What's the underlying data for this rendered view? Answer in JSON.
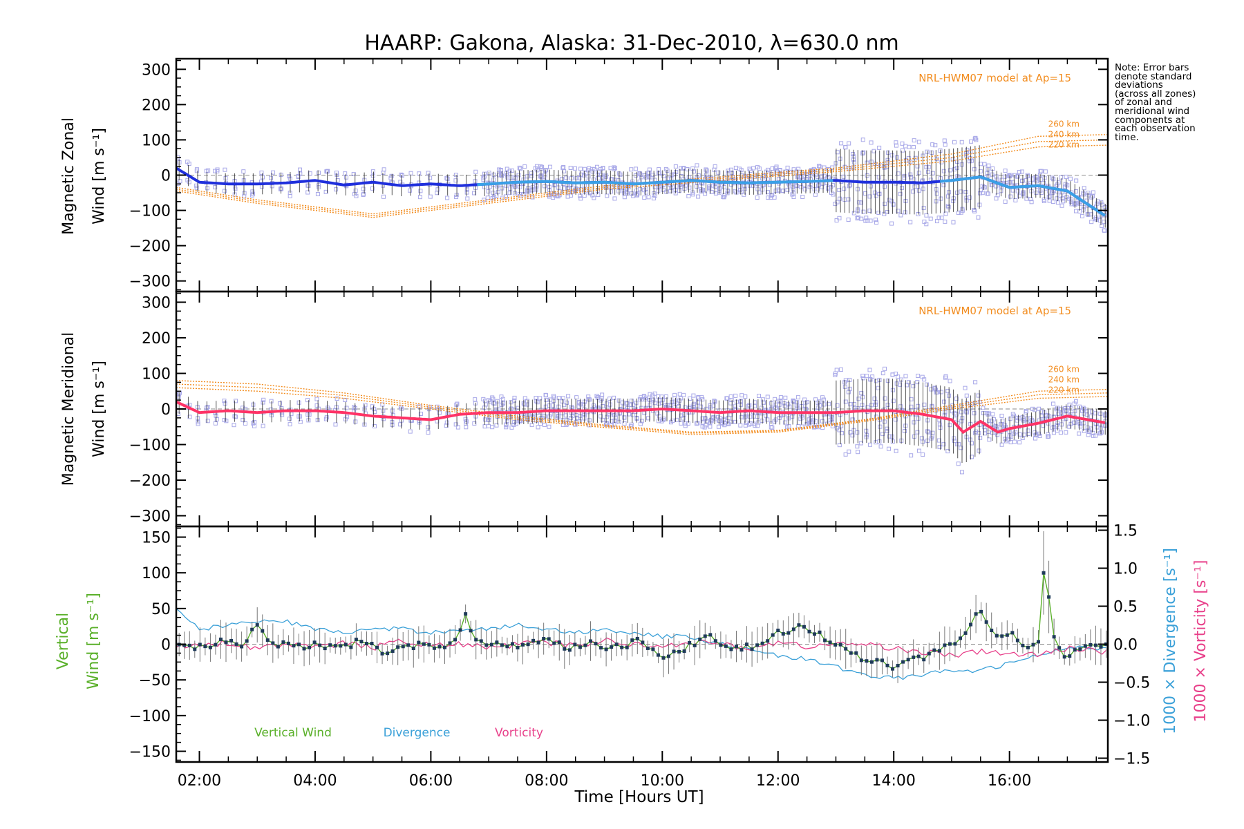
{
  "title": "HAARP: Gakona,  Alaska: 31-Dec-2010, λ=630.0 nm",
  "note": "Note: Error bars\ndenote standard\ndeviations\n(across all zones)\nof zonal and\nmeridional wind\ncomponents at\neach observation\ntime.",
  "colors": {
    "zonal": "#1f2fdc",
    "zonal_light": "#3aa0e6",
    "meridional": "#ff3366",
    "model": "#f28c1e",
    "vertical": "#5ab02a",
    "divergence": "#3aa0d8",
    "vorticity": "#e8408a",
    "scatter": "#a8a8e8",
    "errorbar": "#1a1a1a"
  },
  "chart_data": [
    {
      "type": "scatter",
      "panel": "zonal",
      "ylabel": "Magnetic Zonal",
      "ylabel2": "Wind [m s⁻¹]",
      "ylim": [
        -330,
        330
      ],
      "yticks": [
        300,
        200,
        100,
        0,
        -100,
        -200,
        -300
      ],
      "model_label": "NRL-HWM07 model at Ap=15",
      "model_levels": [
        "260 km",
        "240 km",
        "220 km"
      ],
      "xlim": [
        1.6,
        17.7
      ],
      "series": [
        {
          "role": "mean",
          "x": [
            1.6,
            2.0,
            2.5,
            3.0,
            3.5,
            4.0,
            4.5,
            5.0,
            5.5,
            6.0,
            6.5,
            7.0,
            7.5,
            8.0,
            8.5,
            9.0,
            9.5,
            10.0,
            10.5,
            11.0,
            11.5,
            12.0,
            12.5,
            13.0,
            13.5,
            14.0,
            14.5,
            15.0,
            15.5,
            16.0,
            16.5,
            17.0,
            17.7
          ],
          "values": [
            20,
            -20,
            -25,
            -25,
            -22,
            -15,
            -28,
            -20,
            -30,
            -25,
            -30,
            -25,
            -20,
            -18,
            -22,
            -20,
            -25,
            -20,
            -15,
            -20,
            -22,
            -20,
            -18,
            -15,
            -20,
            -20,
            -22,
            -15,
            -5,
            -35,
            -30,
            -45,
            -120
          ]
        }
      ],
      "model_curves": [
        {
          "name": "260 km",
          "x": [
            1.6,
            3.0,
            5.0,
            7.0,
            9.0,
            11.0,
            13.0,
            15.0,
            16.5,
            17.7
          ],
          "values": [
            -35,
            -70,
            -110,
            -70,
            -30,
            -5,
            20,
            60,
            110,
            115
          ]
        },
        {
          "name": "240 km",
          "x": [
            1.6,
            3.0,
            5.0,
            7.0,
            9.0,
            11.0,
            13.0,
            15.0,
            16.5,
            17.7
          ],
          "values": [
            -40,
            -75,
            -115,
            -75,
            -35,
            -10,
            15,
            50,
            95,
            100
          ]
        },
        {
          "name": "220 km",
          "x": [
            1.6,
            3.0,
            5.0,
            7.0,
            9.0,
            11.0,
            13.0,
            15.0,
            16.5,
            17.7
          ],
          "values": [
            -45,
            -80,
            -120,
            -80,
            -40,
            -15,
            10,
            40,
            80,
            85
          ]
        }
      ]
    },
    {
      "type": "scatter",
      "panel": "meridional",
      "ylabel": "Magnetic Meridional",
      "ylabel2": "Wind [m s⁻¹]",
      "ylim": [
        -330,
        330
      ],
      "yticks": [
        300,
        200,
        100,
        0,
        -100,
        -200,
        -300
      ],
      "model_label": "NRL-HWM07 model at Ap=15",
      "model_levels": [
        "260 km",
        "240 km",
        "220 km"
      ],
      "xlim": [
        1.6,
        17.7
      ],
      "series": [
        {
          "role": "mean",
          "x": [
            1.6,
            2.0,
            2.5,
            3.0,
            3.5,
            4.0,
            4.5,
            5.0,
            5.5,
            6.0,
            6.5,
            7.0,
            7.5,
            8.0,
            8.5,
            9.0,
            9.5,
            10.0,
            10.5,
            11.0,
            11.5,
            12.0,
            12.5,
            13.0,
            13.5,
            14.0,
            14.5,
            15.0,
            15.2,
            15.5,
            15.8,
            16.0,
            16.5,
            17.0,
            17.7
          ],
          "values": [
            20,
            -10,
            -5,
            -10,
            -5,
            -5,
            -10,
            -20,
            -25,
            -30,
            -15,
            -10,
            -10,
            -5,
            -5,
            -5,
            -5,
            0,
            -5,
            -10,
            -5,
            -10,
            -10,
            -10,
            -5,
            -5,
            -15,
            -30,
            -65,
            -35,
            -65,
            -55,
            -40,
            -20,
            -40
          ]
        }
      ],
      "model_curves": [
        {
          "name": "260 km",
          "x": [
            1.6,
            3.0,
            4.5,
            6.0,
            7.5,
            9.0,
            10.5,
            12.0,
            13.5,
            15.0,
            16.5,
            17.7
          ],
          "values": [
            80,
            70,
            45,
            10,
            -20,
            -45,
            -65,
            -60,
            -30,
            10,
            50,
            55
          ]
        },
        {
          "name": "240 km",
          "x": [
            1.6,
            3.0,
            4.5,
            6.0,
            7.5,
            9.0,
            10.5,
            12.0,
            13.5,
            15.0,
            16.5,
            17.7
          ],
          "values": [
            70,
            60,
            38,
            5,
            -25,
            -48,
            -68,
            -62,
            -32,
            5,
            40,
            45
          ]
        },
        {
          "name": "220 km",
          "x": [
            1.6,
            3.0,
            4.5,
            6.0,
            7.5,
            9.0,
            10.5,
            12.0,
            13.5,
            15.0,
            16.5,
            17.7
          ],
          "values": [
            60,
            50,
            30,
            0,
            -30,
            -52,
            -72,
            -65,
            -35,
            0,
            30,
            35
          ]
        }
      ]
    },
    {
      "type": "line",
      "panel": "vertical",
      "ylabel": "Vertical",
      "ylabel2": "Wind [m s⁻¹]",
      "ylim": [
        -165,
        165
      ],
      "yticks": [
        150,
        100,
        50,
        0,
        -50,
        -100,
        -150
      ],
      "y2label": "1000 × Divergence [s⁻¹]",
      "y3label": "1000 × Vorticity [s⁻¹]",
      "y2lim": [
        -1.55,
        1.55
      ],
      "y2ticks": [
        1.5,
        1.0,
        0.5,
        0.0,
        -0.5,
        -1.0,
        -1.5
      ],
      "xlabel": "Time [Hours UT]",
      "xticks": [
        "02:00",
        "04:00",
        "06:00",
        "08:00",
        "10:00",
        "12:00",
        "14:00",
        "16:00"
      ],
      "xtick_values": [
        2,
        4,
        6,
        8,
        10,
        12,
        14,
        16
      ],
      "xlim": [
        1.6,
        17.7
      ],
      "legend": [
        "Vertical Wind",
        "Divergence",
        "Vorticity"
      ],
      "series": [
        {
          "name": "Vertical Wind",
          "x": [
            1.6,
            2.0,
            2.4,
            2.8,
            2.95,
            3.2,
            3.6,
            4.0,
            4.4,
            4.8,
            5.2,
            5.6,
            6.0,
            6.4,
            6.6,
            6.8,
            7.2,
            7.6,
            8.0,
            8.4,
            8.8,
            9.2,
            9.6,
            10.0,
            10.4,
            10.8,
            11.2,
            11.6,
            12.0,
            12.2,
            12.4,
            12.8,
            13.2,
            13.6,
            14.0,
            14.4,
            14.8,
            15.0,
            15.3,
            15.5,
            15.8,
            16.0,
            16.3,
            16.5,
            16.6,
            16.8,
            17.0,
            17.3,
            17.7
          ],
          "values": [
            0,
            -5,
            5,
            0,
            30,
            5,
            -5,
            0,
            -5,
            5,
            -10,
            0,
            -5,
            0,
            38,
            5,
            0,
            0,
            5,
            -5,
            0,
            -5,
            5,
            -20,
            -5,
            10,
            -5,
            -5,
            20,
            15,
            25,
            10,
            -10,
            -25,
            -30,
            -20,
            -10,
            0,
            20,
            50,
            5,
            15,
            -5,
            5,
            115,
            -5,
            -20,
            0,
            0
          ]
        },
        {
          "name": "Divergence",
          "axis": "y2",
          "x": [
            1.6,
            2.0,
            2.5,
            3.0,
            3.5,
            4.0,
            4.5,
            5.0,
            5.5,
            6.0,
            6.5,
            7.0,
            7.5,
            8.0,
            8.5,
            9.0,
            9.5,
            10.0,
            10.5,
            11.0,
            11.5,
            12.0,
            12.5,
            13.0,
            13.5,
            14.0,
            14.5,
            15.0,
            15.5,
            16.0,
            16.5,
            17.0,
            17.7
          ],
          "values": [
            0.45,
            0.2,
            0.25,
            0.3,
            0.3,
            0.2,
            0.15,
            0.2,
            0.2,
            0.15,
            0.2,
            0.2,
            0.25,
            0.2,
            0.15,
            0.2,
            0.15,
            0.1,
            0.1,
            0.0,
            -0.05,
            -0.15,
            -0.2,
            -0.3,
            -0.4,
            -0.45,
            -0.4,
            -0.35,
            -0.35,
            -0.25,
            -0.15,
            -0.05,
            -0.05
          ]
        },
        {
          "name": "Vorticity",
          "axis": "y2",
          "x": [
            1.6,
            2.0,
            2.5,
            3.0,
            3.5,
            4.0,
            4.5,
            5.0,
            5.5,
            6.0,
            6.5,
            7.0,
            7.5,
            8.0,
            8.5,
            9.0,
            9.5,
            10.0,
            10.5,
            11.0,
            11.5,
            12.0,
            12.5,
            13.0,
            13.5,
            14.0,
            14.5,
            15.0,
            15.5,
            16.0,
            16.5,
            17.0,
            17.7
          ],
          "values": [
            -0.02,
            0.0,
            0.02,
            -0.05,
            0.0,
            -0.05,
            0.02,
            -0.05,
            0.05,
            -0.02,
            0.0,
            -0.05,
            0.0,
            0.02,
            -0.02,
            0.05,
            0.0,
            -0.02,
            0.03,
            0.0,
            -0.05,
            0.02,
            -0.03,
            0.0,
            0.0,
            -0.05,
            -0.1,
            -0.15,
            -0.1,
            -0.12,
            -0.15,
            -0.05,
            -0.1
          ]
        }
      ]
    }
  ]
}
